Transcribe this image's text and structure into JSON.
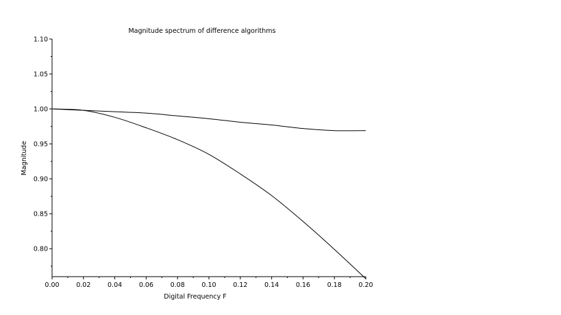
{
  "chart_data": {
    "type": "line",
    "title": "Magnitude spectrum of difference algorithms",
    "xlabel": "Digital Frequency F",
    "ylabel": "Magnitude",
    "xlim": [
      0,
      0.2
    ],
    "ylim": [
      0.76,
      1.1
    ],
    "xticks": [
      "0.00",
      "0.02",
      "0.04",
      "0.06",
      "0.08",
      "0.10",
      "0.12",
      "0.14",
      "0.16",
      "0.18",
      "0.20"
    ],
    "yticks": [
      "0.80",
      "0.85",
      "0.90",
      "0.95",
      "1.00",
      "1.05",
      "1.10"
    ],
    "grid": false,
    "legend": "none",
    "line_color": "#000000",
    "series": [
      {
        "x": [
          0,
          0.02,
          0.04,
          0.06,
          0.08,
          0.1,
          0.12,
          0.14,
          0.16,
          0.18,
          0.2
        ],
        "values": [
          1.0,
          0.998,
          0.996,
          0.994,
          0.99,
          0.986,
          0.981,
          0.977,
          0.972,
          0.969,
          0.969
        ]
      },
      {
        "x": [
          0,
          0.02,
          0.04,
          0.06,
          0.08,
          0.1,
          0.12,
          0.14,
          0.16,
          0.18,
          0.2
        ],
        "values": [
          1.0,
          0.998,
          0.988,
          0.973,
          0.956,
          0.935,
          0.907,
          0.876,
          0.839,
          0.799,
          0.757
        ]
      }
    ]
  }
}
